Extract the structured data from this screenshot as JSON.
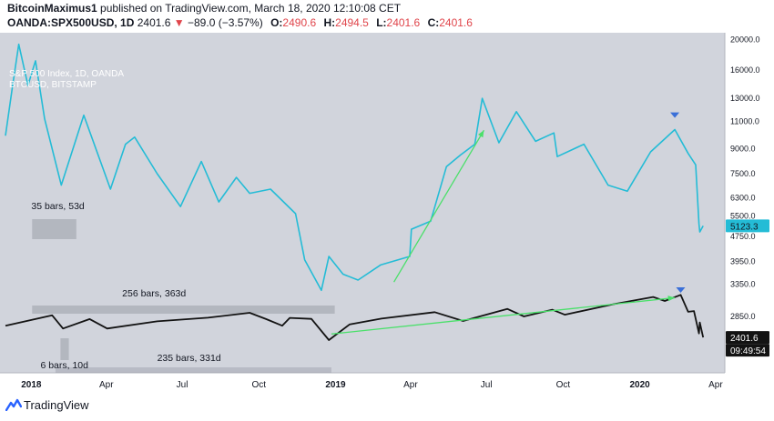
{
  "header": {
    "user": "BitcoinMaximus1",
    "published": "published on TradingView.com, March 18, 2020 12:10:08 CET",
    "symbol": "OANDA:SPX500USD, 1D",
    "last": "2401.6",
    "change": "−89.0 (−3.57%)",
    "o_label": "O:",
    "o_val": "2490.6",
    "h_label": "H:",
    "h_val": "2494.5",
    "l_label": "L:",
    "l_val": "2401.6",
    "c_label": "C:",
    "c_val": "2401.6"
  },
  "legend": {
    "series1": "S&P 500 Index, 1D, OANDA",
    "series2": "BTCUSD, BITSTAMP"
  },
  "footer": {
    "brand": "TradingView"
  },
  "colors": {
    "plot_bg": "#d1d4dc",
    "btc": "#24bcd6",
    "spx": "#131313",
    "trend": "#4ae06a",
    "marker": "#3a6fd8",
    "box": "#9a9ea8",
    "down": "#e0454b"
  },
  "chart_data": {
    "type": "line",
    "x_ticks": [
      "2018",
      "Apr",
      "Jul",
      "Oct",
      "2019",
      "Apr",
      "Jul",
      "Oct",
      "2020",
      "Apr"
    ],
    "y_ticks": [
      "20000.0",
      "16000.0",
      "13000.0",
      "11000.0",
      "9000.0",
      "7500.0",
      "6300.0",
      "5500.0",
      "4750.0",
      "3950.0",
      "3350.0",
      "2850.0",
      "2400.0"
    ],
    "y_scale": "log",
    "price_labels": {
      "btc": "5123.3",
      "spx": "2401.6",
      "countdown": "09:49:54"
    },
    "series": [
      {
        "name": "BTCUSD",
        "x": [
          "2017-12-01",
          "2017-12-10",
          "2017-12-17",
          "2017-12-28",
          "2018-01-06",
          "2018-01-17",
          "2018-02-06",
          "2018-03-05",
          "2018-04-06",
          "2018-04-24",
          "2018-05-05",
          "2018-06-01",
          "2018-06-29",
          "2018-07-24",
          "2018-08-14",
          "2018-09-04",
          "2018-09-20",
          "2018-10-15",
          "2018-11-14",
          "2018-11-25",
          "2018-12-15",
          "2018-12-24",
          "2019-01-10",
          "2019-01-28",
          "2019-02-24",
          "2019-03-31",
          "2019-04-02",
          "2019-04-25",
          "2019-05-14",
          "2019-05-31",
          "2019-06-17",
          "2019-06-26",
          "2019-07-16",
          "2019-08-06",
          "2019-08-29",
          "2019-09-20",
          "2019-09-24",
          "2019-10-26",
          "2019-11-24",
          "2019-12-17",
          "2020-01-14",
          "2020-02-12",
          "2020-02-28",
          "2020-03-08",
          "2020-03-12",
          "2020-03-13",
          "2020-03-17"
        ],
        "values": [
          9900,
          14500,
          19300,
          14300,
          17100,
          11200,
          6900,
          11500,
          6700,
          9300,
          9800,
          7500,
          5900,
          8200,
          6100,
          7300,
          6500,
          6700,
          5600,
          4000,
          3200,
          4100,
          3600,
          3450,
          3850,
          4100,
          5000,
          5300,
          7900,
          8600,
          9300,
          13000,
          9400,
          11800,
          9500,
          10100,
          8500,
          9300,
          6900,
          6600,
          8800,
          10350,
          8700,
          8000,
          5200,
          4900,
          5123
        ]
      },
      {
        "name": "SPX500USD",
        "x": [
          "2017-12-01",
          "2018-01-26",
          "2018-02-08",
          "2018-03-12",
          "2018-04-02",
          "2018-06-01",
          "2018-08-01",
          "2018-09-20",
          "2018-10-10",
          "2018-10-29",
          "2018-11-07",
          "2018-12-03",
          "2018-12-24",
          "2019-01-18",
          "2019-02-25",
          "2019-04-30",
          "2019-06-03",
          "2019-07-26",
          "2019-08-15",
          "2019-09-18",
          "2019-10-03",
          "2019-11-30",
          "2020-01-17",
          "2020-01-31",
          "2020-02-19",
          "2020-02-28",
          "2020-03-06",
          "2020-03-12",
          "2020-03-13",
          "2020-03-17"
        ],
        "values": [
          2640,
          2872,
          2581,
          2786,
          2581,
          2735,
          2816,
          2931,
          2785,
          2641,
          2813,
          2790,
          2351,
          2670,
          2796,
          2945,
          2744,
          3025,
          2847,
          3006,
          2887,
          3141,
          3330,
          3225,
          3386,
          2954,
          2972,
          2480,
          2711,
          2401.6
        ]
      }
    ],
    "annotations": [
      {
        "text": "35 bars, 53d"
      },
      {
        "text": "256 bars, 363d"
      },
      {
        "text": "6 bars, 10d"
      },
      {
        "text": "235 bars, 331d"
      }
    ],
    "trendlines": [
      {
        "series": "BTCUSD",
        "from": [
          "2019-03-12",
          3400
        ],
        "to": [
          "2019-06-28",
          10300
        ]
      },
      {
        "series": "SPX500USD",
        "from": [
          "2018-12-27",
          2470
        ],
        "to": [
          "2020-02-12",
          3310
        ]
      }
    ],
    "markers": [
      {
        "series": "BTCUSD",
        "date": "2020-02-12",
        "value": 11500
      },
      {
        "series": "SPX500USD",
        "date": "2020-02-19",
        "value": 3520
      }
    ]
  }
}
